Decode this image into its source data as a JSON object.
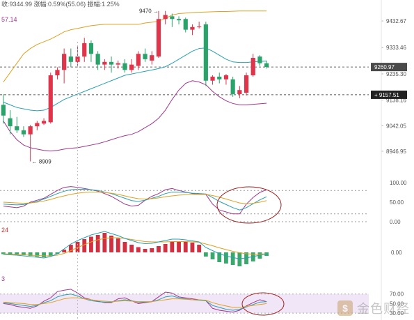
{
  "top_left": {
    "line1": "收:9344.99  涨幅:0.59%(55.06)  振幅:1.25%",
    "line2": "57.14"
  },
  "panels": {
    "macd_left_label": "24",
    "kdj_left_label": "3"
  },
  "chart_data": [
    {
      "type": "candlestick",
      "title": "",
      "y_ticks": [
        "9432.67",
        "9333.46",
        "9235.30",
        "9138.16",
        "9042.05",
        "8946.95"
      ],
      "current_price_tag": "9260.97",
      "horizontal_line_tag": "9157.51",
      "high_annotation": "9470",
      "low_annotation": "8909",
      "candles": [
        {
          "o": 9120,
          "h": 9160,
          "l": 9050,
          "c": 9080
        },
        {
          "o": 9070,
          "h": 9100,
          "l": 9010,
          "c": 9040
        },
        {
          "o": 9040,
          "h": 9075,
          "l": 9015,
          "c": 9025
        },
        {
          "o": 9025,
          "h": 9040,
          "l": 9000,
          "c": 9010
        },
        {
          "o": 9010,
          "h": 9045,
          "l": 8909,
          "c": 9040
        },
        {
          "o": 9040,
          "h": 9060,
          "l": 9025,
          "c": 9052
        },
        {
          "o": 9050,
          "h": 9070,
          "l": 9045,
          "c": 9060
        },
        {
          "o": 9055,
          "h": 9240,
          "l": 9050,
          "c": 9230
        },
        {
          "o": 9230,
          "h": 9260,
          "l": 9215,
          "c": 9250
        },
        {
          "o": 9250,
          "h": 9330,
          "l": 9200,
          "c": 9310
        },
        {
          "o": 9300,
          "h": 9330,
          "l": 9260,
          "c": 9280
        },
        {
          "o": 9280,
          "h": 9340,
          "l": 9265,
          "c": 9300
        },
        {
          "o": 9300,
          "h": 9370,
          "l": 9280,
          "c": 9350
        },
        {
          "o": 9350,
          "h": 9360,
          "l": 9280,
          "c": 9310
        },
        {
          "o": 9310,
          "h": 9320,
          "l": 9250,
          "c": 9270
        },
        {
          "o": 9270,
          "h": 9290,
          "l": 9250,
          "c": 9280
        },
        {
          "o": 9280,
          "h": 9300,
          "l": 9240,
          "c": 9270
        },
        {
          "o": 9270,
          "h": 9285,
          "l": 9255,
          "c": 9275
        },
        {
          "o": 9275,
          "h": 9290,
          "l": 9240,
          "c": 9250
        },
        {
          "o": 9250,
          "h": 9290,
          "l": 9240,
          "c": 9270
        },
        {
          "o": 9265,
          "h": 9320,
          "l": 9250,
          "c": 9310
        },
        {
          "o": 9310,
          "h": 9330,
          "l": 9280,
          "c": 9290
        },
        {
          "o": 9285,
          "h": 9320,
          "l": 9270,
          "c": 9305
        },
        {
          "o": 9300,
          "h": 9470,
          "l": 9295,
          "c": 9440
        },
        {
          "o": 9440,
          "h": 9470,
          "l": 9420,
          "c": 9455
        },
        {
          "o": 9450,
          "h": 9460,
          "l": 9410,
          "c": 9440
        },
        {
          "o": 9440,
          "h": 9450,
          "l": 9420,
          "c": 9435
        },
        {
          "o": 9440,
          "h": 9445,
          "l": 9390,
          "c": 9400
        },
        {
          "o": 9400,
          "h": 9420,
          "l": 9380,
          "c": 9410
        },
        {
          "o": 9410,
          "h": 9430,
          "l": 9405,
          "c": 9412
        },
        {
          "o": 9420,
          "h": 9430,
          "l": 9190,
          "c": 9210
        },
        {
          "o": 9210,
          "h": 9230,
          "l": 9195,
          "c": 9225
        },
        {
          "o": 9225,
          "h": 9240,
          "l": 9200,
          "c": 9215
        },
        {
          "o": 9215,
          "h": 9235,
          "l": 9195,
          "c": 9230
        },
        {
          "o": 9215,
          "h": 9225,
          "l": 9150,
          "c": 9160
        },
        {
          "o": 9160,
          "h": 9190,
          "l": 9145,
          "c": 9175
        },
        {
          "o": 9165,
          "h": 9240,
          "l": 9155,
          "c": 9230
        },
        {
          "o": 9230,
          "h": 9310,
          "l": 9225,
          "c": 9295
        },
        {
          "o": 9300,
          "h": 9305,
          "l": 9265,
          "c": 9275
        },
        {
          "o": 9275,
          "h": 9285,
          "l": 9255,
          "c": 9261
        }
      ],
      "boll_upper": [
        9205,
        9240,
        9275,
        9310,
        9330,
        9345,
        9355,
        9365,
        9378,
        9392,
        9400,
        9405,
        9410,
        9415,
        9418,
        9420,
        9420,
        9420,
        9420,
        9420,
        9420,
        9425,
        9428,
        9432,
        9442,
        9455,
        9460,
        9462,
        9464,
        9465,
        9466,
        9467,
        9468,
        9468,
        9469,
        9470,
        9470,
        9470,
        9470,
        9470
      ],
      "boll_mid": [
        9130,
        9120,
        9110,
        9105,
        9100,
        9098,
        9100,
        9110,
        9125,
        9140,
        9150,
        9160,
        9170,
        9180,
        9190,
        9200,
        9210,
        9220,
        9230,
        9235,
        9240,
        9245,
        9250,
        9255,
        9262,
        9275,
        9290,
        9305,
        9320,
        9330,
        9332,
        9320,
        9305,
        9290,
        9280,
        9278,
        9278,
        9280,
        9282,
        9283
      ],
      "boll_lower": [
        9060,
        9020,
        8990,
        8970,
        8960,
        8955,
        8950,
        8948,
        8950,
        8955,
        8958,
        8960,
        8965,
        8970,
        8975,
        8982,
        8990,
        8998,
        9005,
        9010,
        9020,
        9035,
        9050,
        9070,
        9100,
        9140,
        9175,
        9200,
        9210,
        9205,
        9195,
        9170,
        9150,
        9135,
        9125,
        9120,
        9120,
        9122,
        9124,
        9126
      ]
    },
    {
      "type": "line",
      "title": "",
      "y_ticks": [
        "100.00",
        "50.00",
        "0.00"
      ],
      "ylim": [
        0,
        100
      ],
      "series": [
        {
          "color": "#a0368e",
          "values": [
            40,
            38,
            36,
            40,
            50,
            55,
            60,
            70,
            80,
            88,
            90,
            88,
            85,
            82,
            78,
            72,
            65,
            55,
            45,
            40,
            42,
            55,
            65,
            72,
            82,
            85,
            80,
            76,
            72,
            70,
            70,
            45,
            30,
            25,
            20,
            20,
            45,
            62,
            75,
            82
          ]
        },
        {
          "color": "#27a0b0",
          "values": [
            45,
            44,
            43,
            44,
            48,
            52,
            58,
            65,
            72,
            78,
            82,
            83,
            83,
            82,
            80,
            76,
            72,
            66,
            60,
            54,
            52,
            55,
            60,
            65,
            72,
            76,
            76,
            75,
            73,
            72,
            71,
            62,
            52,
            44,
            36,
            30,
            36,
            46,
            56,
            64
          ]
        },
        {
          "color": "#e0a020",
          "values": [
            50,
            49,
            48,
            47,
            48,
            50,
            53,
            57,
            62,
            66,
            70,
            73,
            75,
            76,
            76,
            75,
            73,
            70,
            66,
            62,
            59,
            58,
            59,
            61,
            64,
            66,
            68,
            69,
            70,
            70,
            70,
            67,
            63,
            58,
            53,
            48,
            46,
            47,
            50,
            54
          ]
        }
      ]
    },
    {
      "type": "bar",
      "title": "",
      "y_ticks": [
        "0.00"
      ],
      "ylim": [
        -60,
        80
      ],
      "values": [
        -5,
        -6,
        -7,
        -8,
        -10,
        -12,
        -14,
        -10,
        -4,
        8,
        22,
        30,
        38,
        45,
        50,
        56,
        48,
        40,
        30,
        22,
        15,
        10,
        12,
        18,
        24,
        30,
        32,
        30,
        28,
        22,
        -12,
        -20,
        -28,
        -32,
        -36,
        -40,
        -34,
        -26,
        -18,
        -10
      ],
      "series": [
        {
          "color": "#e0a020",
          "values": [
            -4,
            -5,
            -6,
            -7,
            -8,
            -9,
            -10,
            -10,
            -8,
            -3,
            5,
            14,
            22,
            30,
            36,
            40,
            42,
            42,
            40,
            37,
            34,
            31,
            30,
            30,
            30,
            31,
            31,
            31,
            30,
            29,
            24,
            19,
            13,
            8,
            3,
            -1,
            -4,
            -5,
            -5,
            -4
          ]
        },
        {
          "color": "#27a0b0",
          "values": [
            -6,
            -7,
            -8,
            -10,
            -12,
            -14,
            -16,
            -12,
            -4,
            10,
            24,
            34,
            42,
            50,
            55,
            60,
            54,
            48,
            40,
            34,
            28,
            25,
            26,
            30,
            34,
            38,
            38,
            36,
            33,
            30,
            14,
            5,
            -4,
            -10,
            -15,
            -18,
            -16,
            -12,
            -8,
            -4
          ]
        }
      ]
    },
    {
      "type": "line",
      "title": "",
      "y_ticks": [
        "70.00",
        "50.00",
        "30.00"
      ],
      "ylim": [
        20,
        90
      ],
      "band": [
        30,
        70
      ],
      "series": [
        {
          "color": "#a0368e",
          "values": [
            50,
            48,
            44,
            42,
            40,
            45,
            55,
            62,
            75,
            78,
            80,
            72,
            62,
            58,
            55,
            52,
            52,
            60,
            62,
            56,
            50,
            52,
            54,
            64,
            74,
            72,
            64,
            62,
            60,
            58,
            56,
            40,
            36,
            34,
            32,
            36,
            45,
            52,
            58,
            54
          ]
        },
        {
          "color": "#27a0b0",
          "values": [
            52,
            50,
            48,
            46,
            44,
            46,
            52,
            56,
            64,
            68,
            70,
            66,
            60,
            56,
            54,
            53,
            53,
            56,
            58,
            56,
            53,
            53,
            54,
            58,
            64,
            66,
            62,
            60,
            58,
            57,
            56,
            46,
            42,
            38,
            36,
            38,
            43,
            48,
            53,
            54
          ]
        },
        {
          "color": "#e0a020",
          "values": [
            53,
            52,
            51,
            50,
            48,
            48,
            50,
            52,
            56,
            60,
            62,
            62,
            60,
            58,
            56,
            55,
            54,
            55,
            56,
            55,
            54,
            54,
            54,
            56,
            58,
            60,
            60,
            59,
            58,
            58,
            57,
            52,
            48,
            45,
            42,
            42,
            44,
            46,
            48,
            50
          ]
        }
      ]
    }
  ]
}
